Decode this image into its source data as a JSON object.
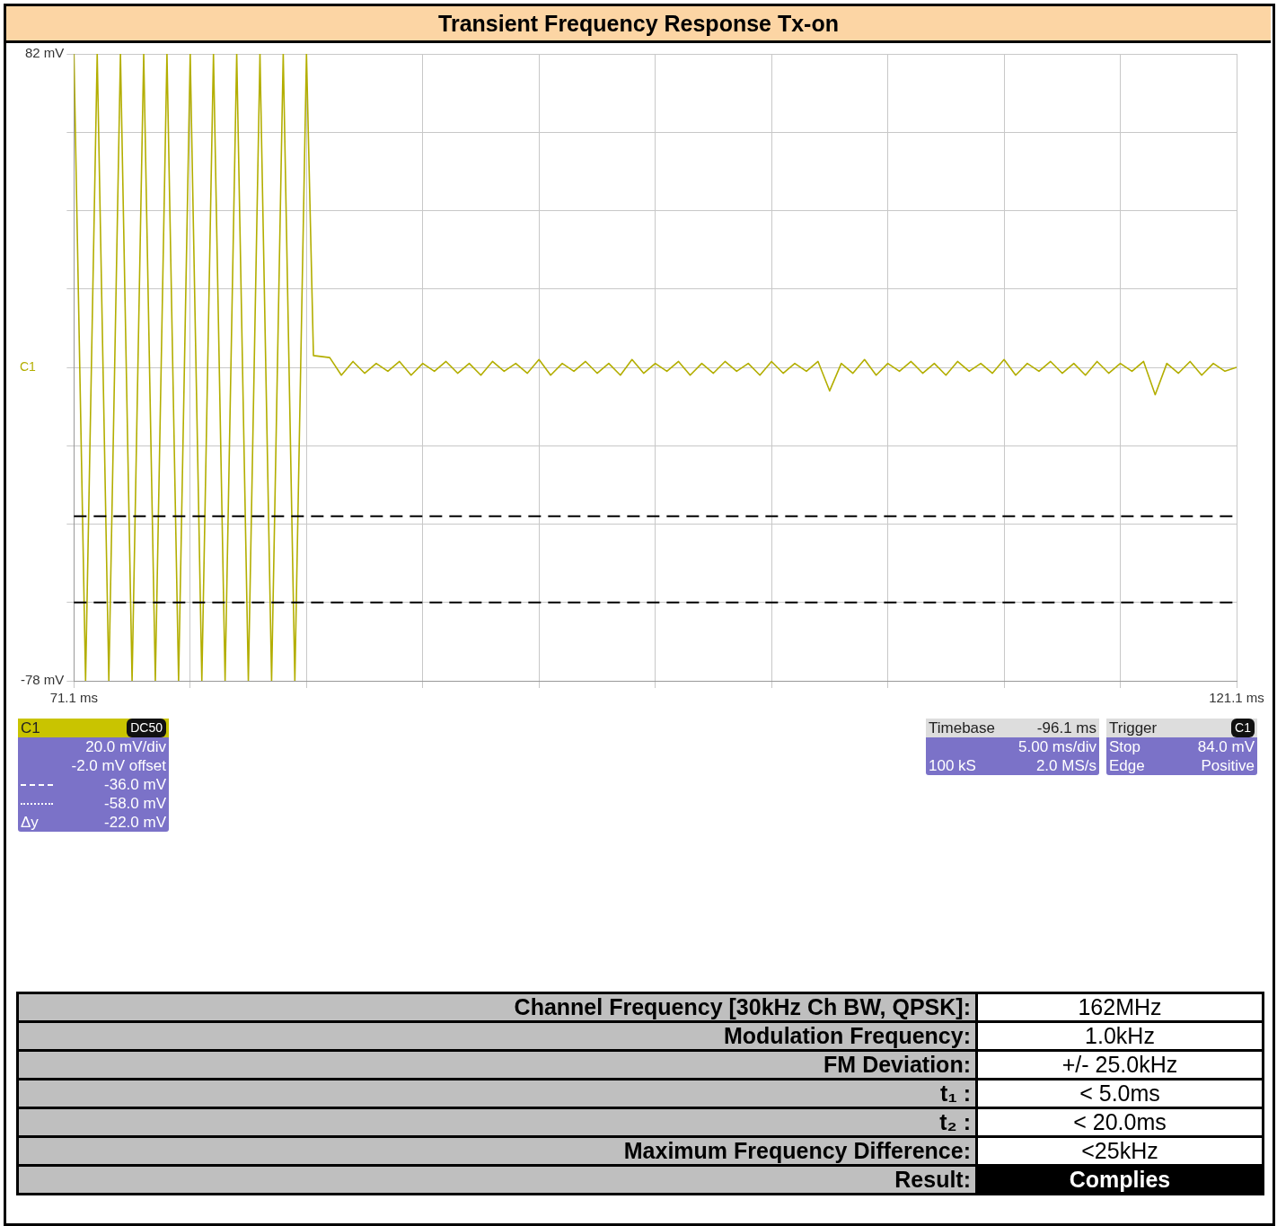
{
  "chart_data": {
    "type": "line",
    "title": "Transient Frequency Response Tx-on",
    "xlim": [
      71.1,
      121.1
    ],
    "xticks": [
      {
        "value": 71.1,
        "label": "71.1 ms"
      },
      {
        "value": 76.1,
        "label": null
      },
      {
        "value": 81.1,
        "label": null
      },
      {
        "value": 86.1,
        "label": null
      },
      {
        "value": 91.1,
        "label": null
      },
      {
        "value": 96.1,
        "label": null
      },
      {
        "value": 101.1,
        "label": null
      },
      {
        "value": 106.1,
        "label": null
      },
      {
        "value": 111.1,
        "label": null
      },
      {
        "value": 116.1,
        "label": null
      },
      {
        "value": 121.1,
        "label": "121.1 ms"
      }
    ],
    "ylim": [
      -78,
      82
    ],
    "yticks": [
      {
        "value": -78,
        "label": "-78 mV"
      },
      {
        "value": -58,
        "label": null
      },
      {
        "value": -38,
        "label": null
      },
      {
        "value": -18,
        "label": null
      },
      {
        "value": 2,
        "label": null
      },
      {
        "value": 22,
        "label": null
      },
      {
        "value": 42,
        "label": null
      },
      {
        "value": 62,
        "label": null
      },
      {
        "value": 82,
        "label": "82 mV"
      }
    ],
    "grid": true,
    "marker": "none",
    "line_style": "solid",
    "series": [
      {
        "color": "#b3ae00",
        "x": [
          71.1,
          71.6,
          72.1,
          72.6,
          73.1,
          73.6,
          74.1,
          74.6,
          75.1,
          75.6,
          76.1,
          76.6,
          77.1,
          77.6,
          78.1,
          78.6,
          79.1,
          79.6,
          80.1,
          80.6,
          81.1,
          81.4,
          82.1,
          82.6,
          83.1,
          83.6,
          84.1,
          84.6,
          85.1,
          85.6,
          86.1,
          86.6,
          87.1,
          87.6,
          88.1,
          88.6,
          89.1,
          89.6,
          90.1,
          90.6,
          91.1,
          91.6,
          92.1,
          92.6,
          93.1,
          93.6,
          94.1,
          94.6,
          95.1,
          95.6,
          96.1,
          96.6,
          97.1,
          97.6,
          98.1,
          98.6,
          99.1,
          99.6,
          100.1,
          100.6,
          101.1,
          101.6,
          102.1,
          102.6,
          103.1,
          103.6,
          104.1,
          104.6,
          105.1,
          105.6,
          106.1,
          106.6,
          107.1,
          107.6,
          108.1,
          108.6,
          109.1,
          109.6,
          110.1,
          110.6,
          111.1,
          111.6,
          112.1,
          112.6,
          113.1,
          113.6,
          114.1,
          114.6,
          115.1,
          115.6,
          116.1,
          116.6,
          117.1,
          117.6,
          118.1,
          118.6,
          119.1,
          119.6,
          120.1,
          120.6,
          121.1
        ],
        "values": [
          82,
          -78,
          82,
          -78,
          82,
          -78,
          82,
          -78,
          82,
          -78,
          82,
          -78,
          82,
          -78,
          82,
          -78,
          82,
          -78,
          82,
          -78,
          82,
          5,
          4.5,
          0,
          3.5,
          0.5,
          3,
          1,
          3.5,
          0,
          3,
          1,
          3.5,
          0.5,
          3,
          0,
          3.5,
          1,
          3,
          0.5,
          4,
          0,
          3,
          1,
          3.5,
          0.5,
          3,
          0,
          4,
          0.5,
          3,
          1,
          3.5,
          0,
          3,
          0.5,
          3.5,
          1,
          3,
          0,
          3.5,
          0.5,
          3,
          1,
          3.5,
          -4,
          3,
          0.5,
          4,
          0,
          3,
          1,
          3.5,
          0.5,
          3,
          0,
          3.5,
          1,
          3,
          0.5,
          4,
          0,
          3,
          1,
          3.5,
          0.5,
          3,
          0,
          3.5,
          0.5,
          3,
          1,
          3.5,
          -5,
          3,
          0.5,
          3.5,
          0,
          3,
          1,
          2
        ]
      }
    ],
    "ref_lines": [
      {
        "axis": "y",
        "value": -36,
        "color": "#000000",
        "line_style": "dashed"
      },
      {
        "axis": "y",
        "value": -58,
        "color": "#000000",
        "line_style": "dashed"
      }
    ],
    "annotations": [
      "C1",
      "DC50",
      "20.0 mV/div",
      "-2.0 mV offset",
      "-36.0 mV",
      "-58.0 mV",
      "Δy",
      "-22.0 mV",
      "Timebase",
      "-96.1 ms",
      "5.00 ms/div",
      "100 kS",
      "2.0 MS/s",
      "Trigger",
      "C1",
      "Stop",
      "84.0 mV",
      "Edge",
      "Positive",
      "Channel Frequency [30kHz Ch BW, QPSK]:",
      "162MHz",
      "Modulation Frequency:",
      "1.0kHz",
      "FM Deviation:",
      "+/- 25.0kHz",
      "t₁ :",
      "< 5.0ms",
      "t₂ :",
      "< 20.0ms",
      "Maximum Frequency Difference:",
      "<25kHz",
      "Result:",
      "Complies",
      "C1"
    ]
  }
}
